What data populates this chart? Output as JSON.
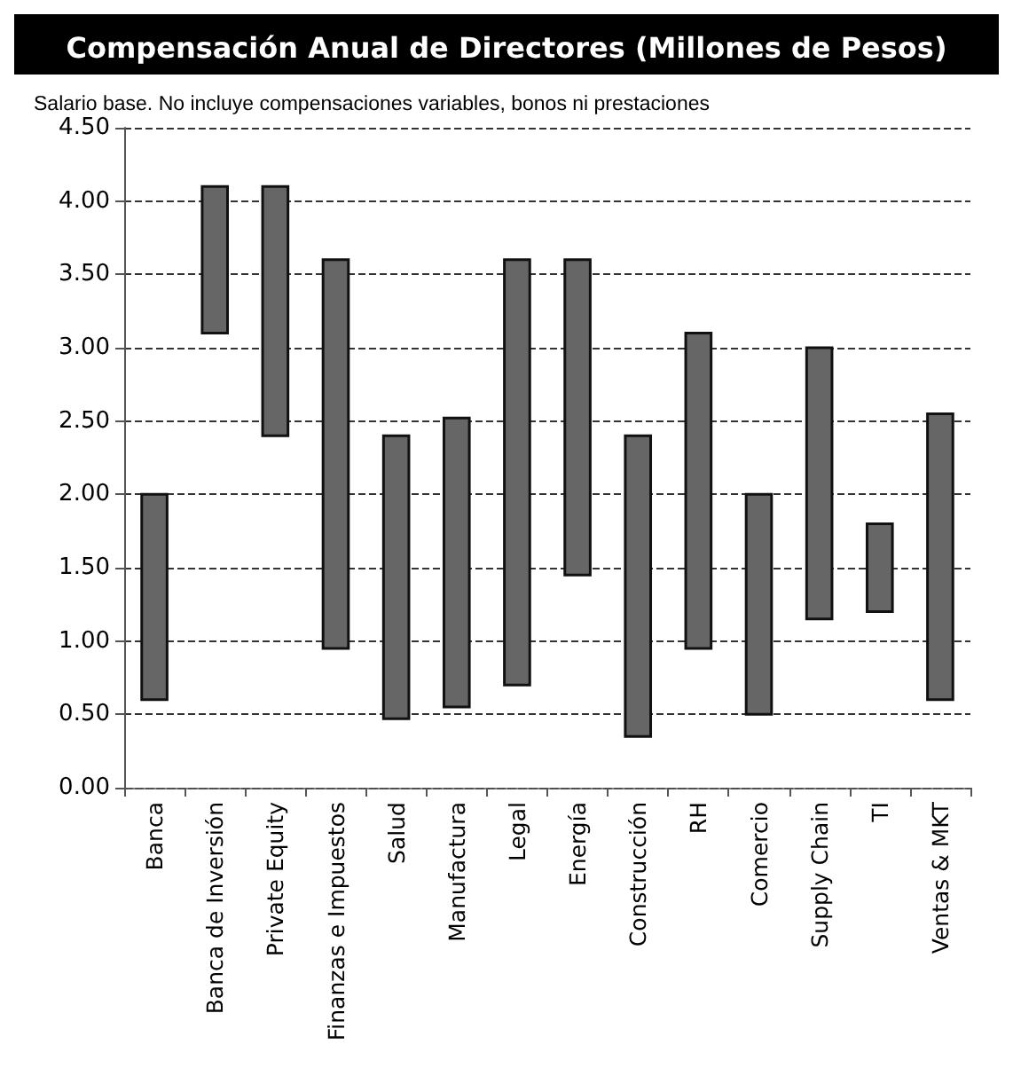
{
  "chart_data": {
    "type": "bar",
    "title": "Compensación Anual de Directores (Millones de Pesos)",
    "subtitle": "Salario base. No incluye compensaciones variables, bonos ni prestaciones",
    "categories": [
      "Banca",
      "Banca de Inversión",
      "Private Equity",
      "Finanzas e Impuestos",
      "Salud",
      "Manufactura",
      "Legal",
      "Energía",
      "Construcción",
      "RH",
      "Comercio",
      "Supply Chain",
      "TI",
      "Ventas & MKT"
    ],
    "base": [
      0.6,
      3.1,
      2.4,
      0.95,
      0.47,
      0.55,
      0.7,
      1.45,
      0.35,
      0.95,
      0.5,
      1.15,
      1.2,
      0.6
    ],
    "values": [
      1.4,
      1.0,
      1.7,
      2.65,
      1.93,
      1.97,
      2.9,
      2.15,
      2.05,
      2.15,
      1.5,
      1.85,
      0.6,
      1.95
    ],
    "color": "#666666",
    "ylim": [
      0,
      4.5
    ],
    "yticks": [
      {
        "value": 0,
        "label": "0.00"
      },
      {
        "value": 0.5,
        "label": "0.50"
      },
      {
        "value": 1,
        "label": "1.00"
      },
      {
        "value": 1.5,
        "label": "1.50"
      },
      {
        "value": 2,
        "label": "2.00"
      },
      {
        "value": 2.5,
        "label": "2.50"
      },
      {
        "value": 3,
        "label": "3.00"
      },
      {
        "value": 3.5,
        "label": "3.50"
      },
      {
        "value": 4,
        "label": "4.00"
      },
      {
        "value": 4.5,
        "label": "4.50"
      }
    ],
    "grid": "y"
  }
}
